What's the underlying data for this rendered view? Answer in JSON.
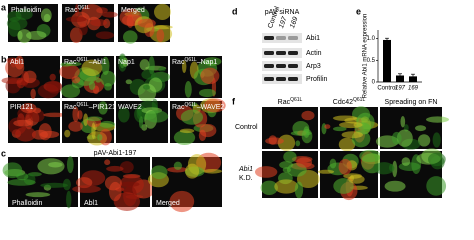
{
  "panel_labels": [
    "a",
    "b",
    "c",
    "d",
    "e",
    "f"
  ],
  "a": {
    "images": [
      [
        "Phalloidin"
      ],
      [
        "Rac",
        "Q61L"
      ],
      [
        "Merged"
      ]
    ]
  },
  "b": {
    "images": [
      [
        "Abl1"
      ],
      [
        "Rac",
        "Q61L",
        "–Abl1"
      ],
      [
        "Nap1"
      ],
      [
        "Rac",
        "Q61L",
        "–Nap1"
      ],
      [
        "PIR121"
      ],
      [
        "Rac",
        "Q61L",
        "–PIR121"
      ],
      [
        "WAVE2"
      ],
      [
        "Rac",
        "Q61L",
        "–WAVE2"
      ]
    ]
  },
  "c": {
    "title": "pAV-Abi1-197",
    "images": [
      [
        "Phalloidin"
      ],
      [
        "Abl1"
      ],
      [
        "Merged"
      ]
    ]
  },
  "d": {
    "title": "pAV siRNA",
    "lanes": [
      "Control",
      "197",
      "169"
    ],
    "bands": [
      "Abi1",
      "Actin",
      "Arp3",
      "Profilin"
    ]
  },
  "chart_data": {
    "type": "bar",
    "y_label": "Relative Abi1 mRNA expression",
    "categories": [
      "Control",
      "197",
      "169"
    ],
    "values": [
      0.97,
      0.15,
      0.13
    ],
    "errors": [
      0.04,
      0.04,
      0.05
    ],
    "color": "#000000",
    "ylim": [
      0,
      1.2
    ],
    "yticks": [
      0,
      0.5,
      {
        "value": 1,
        "label": "1.0"
      }
    ]
  },
  "f": {
    "columns": [
      [
        "Rac",
        "Q61L"
      ],
      [
        "Cdc42",
        "Q61L"
      ],
      [
        "Spreading on FN"
      ]
    ],
    "rows": [
      [
        "Control"
      ],
      [
        "Abi1",
        "K.D."
      ]
    ]
  }
}
